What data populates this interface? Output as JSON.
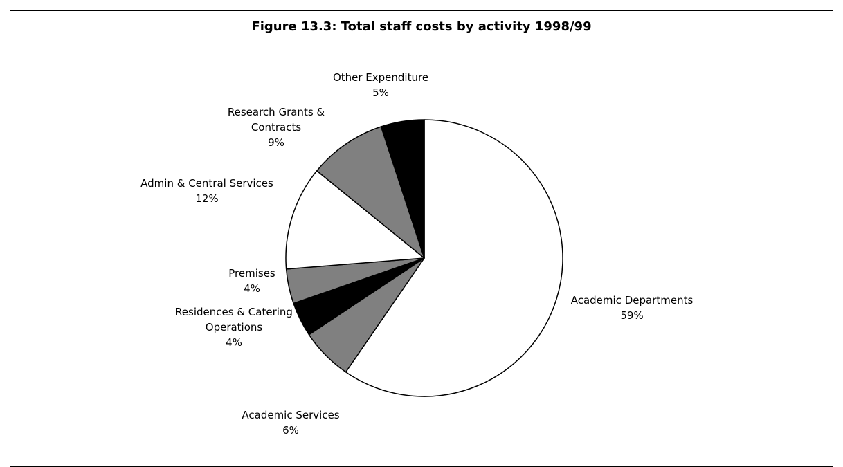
{
  "chart_data": {
    "type": "pie",
    "title": "Figure 13.3: Total staff costs by activity  1998/99",
    "start_angle_deg": 0,
    "direction": "clockwise",
    "slices": [
      {
        "name": "Academic Departments",
        "value": 59,
        "label_lines": [
          "Academic Departments"
        ],
        "pct": "59%",
        "color": "#ffffff"
      },
      {
        "name": "Academic Services",
        "value": 6,
        "label_lines": [
          "Academic Services"
        ],
        "pct": "6%",
        "color": "#808080"
      },
      {
        "name": "Residences & Catering Operations",
        "value": 4,
        "label_lines": [
          "Residences & Catering",
          "Operations"
        ],
        "pct": "4%",
        "color": "#000000"
      },
      {
        "name": "Premises",
        "value": 4,
        "label_lines": [
          "Premises"
        ],
        "pct": "4%",
        "color": "#808080"
      },
      {
        "name": "Admin & Central Services",
        "value": 12,
        "label_lines": [
          "Admin & Central Services"
        ],
        "pct": "12%",
        "color": "#ffffff"
      },
      {
        "name": "Research Grants & Contracts",
        "value": 9,
        "label_lines": [
          "Research Grants &",
          "Contracts"
        ],
        "pct": "9%",
        "color": "#808080"
      },
      {
        "name": "Other Expenditure",
        "value": 5,
        "label_lines": [
          "Other Expenditure"
        ],
        "pct": "5%",
        "color": "#000000"
      }
    ]
  }
}
